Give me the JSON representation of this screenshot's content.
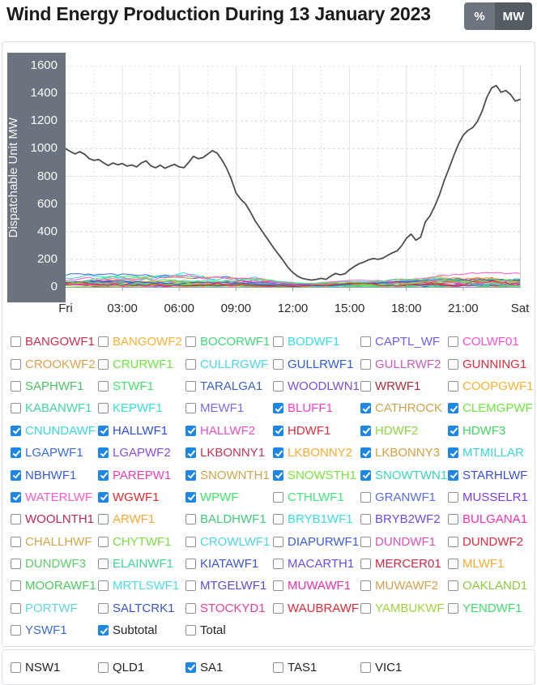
{
  "title": "Wind Energy Production During 13 January 2023",
  "toolbar": {
    "percent_label": "%",
    "mw_label": "MW",
    "active": "MW",
    "percent_bg": "#6c757d",
    "mw_bg": "#545b62"
  },
  "chart_data": {
    "type": "line",
    "title": "Wind Energy Production During 13 January 2023",
    "ylabel": "Dispatchable Unit MW",
    "ylim": [
      0,
      1600
    ],
    "ytick_interval": 200,
    "grid": true,
    "legend_position": "none",
    "axis_strip_color": "#6b747e",
    "xticks": [
      {
        "label": "Fri",
        "hour": 0
      },
      {
        "label": "03:00",
        "hour": 3
      },
      {
        "label": "06:00",
        "hour": 6
      },
      {
        "label": "09:00",
        "hour": 9
      },
      {
        "label": "12:00",
        "hour": 12
      },
      {
        "label": "15:00",
        "hour": 15
      },
      {
        "label": "18:00",
        "hour": 18
      },
      {
        "label": "21:00",
        "hour": 21
      },
      {
        "label": "Sat",
        "hour": 24
      }
    ],
    "series": [
      {
        "name": "Subtotal",
        "color": "#4d4d4d",
        "points": [
          [
            0,
            1000
          ],
          [
            0.25,
            980
          ],
          [
            0.5,
            962
          ],
          [
            0.75,
            978
          ],
          [
            1,
            960
          ],
          [
            1.25,
            928
          ],
          [
            1.5,
            915
          ],
          [
            1.75,
            922
          ],
          [
            2,
            898
          ],
          [
            2.25,
            878
          ],
          [
            2.5,
            896
          ],
          [
            2.75,
            884
          ],
          [
            3,
            892
          ],
          [
            3.25,
            874
          ],
          [
            3.5,
            882
          ],
          [
            3.75,
            868
          ],
          [
            4,
            896
          ],
          [
            4.25,
            912
          ],
          [
            4.5,
            876
          ],
          [
            4.75,
            862
          ],
          [
            5,
            880
          ],
          [
            5.25,
            858
          ],
          [
            5.5,
            874
          ],
          [
            5.75,
            886
          ],
          [
            6,
            868
          ],
          [
            6.25,
            862
          ],
          [
            6.5,
            900
          ],
          [
            6.75,
            945
          ],
          [
            7,
            928
          ],
          [
            7.25,
            935
          ],
          [
            7.5,
            960
          ],
          [
            7.75,
            985
          ],
          [
            8,
            968
          ],
          [
            8.25,
            920
          ],
          [
            8.5,
            860
          ],
          [
            8.75,
            780
          ],
          [
            9,
            680
          ],
          [
            9.25,
            635
          ],
          [
            9.5,
            600
          ],
          [
            9.75,
            545
          ],
          [
            10,
            480
          ],
          [
            10.25,
            430
          ],
          [
            10.5,
            380
          ],
          [
            10.75,
            330
          ],
          [
            11,
            280
          ],
          [
            11.25,
            235
          ],
          [
            11.5,
            190
          ],
          [
            11.75,
            140
          ],
          [
            12,
            105
          ],
          [
            12.25,
            78
          ],
          [
            12.5,
            62
          ],
          [
            12.75,
            55
          ],
          [
            13,
            50
          ],
          [
            13.25,
            55
          ],
          [
            13.5,
            62
          ],
          [
            13.75,
            55
          ],
          [
            14,
            78
          ],
          [
            14.25,
            98
          ],
          [
            14.5,
            88
          ],
          [
            14.75,
            95
          ],
          [
            15,
            125
          ],
          [
            15.25,
            148
          ],
          [
            15.5,
            168
          ],
          [
            15.75,
            180
          ],
          [
            16,
            196
          ],
          [
            16.25,
            206
          ],
          [
            16.5,
            200
          ],
          [
            16.75,
            208
          ],
          [
            17,
            228
          ],
          [
            17.25,
            246
          ],
          [
            17.5,
            260
          ],
          [
            17.75,
            298
          ],
          [
            18,
            352
          ],
          [
            18.25,
            382
          ],
          [
            18.5,
            338
          ],
          [
            18.75,
            360
          ],
          [
            19,
            470
          ],
          [
            19.25,
            515
          ],
          [
            19.5,
            585
          ],
          [
            19.75,
            668
          ],
          [
            20,
            770
          ],
          [
            20.25,
            856
          ],
          [
            20.5,
            948
          ],
          [
            20.75,
            1032
          ],
          [
            21,
            1098
          ],
          [
            21.25,
            1132
          ],
          [
            21.5,
            1152
          ],
          [
            21.75,
            1196
          ],
          [
            22,
            1272
          ],
          [
            22.25,
            1372
          ],
          [
            22.5,
            1438
          ],
          [
            22.75,
            1456
          ],
          [
            23,
            1408
          ],
          [
            23.25,
            1420
          ],
          [
            23.5,
            1392
          ],
          [
            23.75,
            1344
          ],
          [
            24,
            1356
          ]
        ]
      }
    ],
    "minor_band_max_by_hour": {
      "hours": [
        0,
        2,
        4,
        6,
        8,
        9,
        10,
        11,
        12,
        13,
        14,
        15,
        16,
        17,
        18,
        19,
        20,
        21,
        22,
        23,
        24
      ],
      "max": [
        100,
        98,
        102,
        108,
        100,
        95,
        85,
        60,
        38,
        32,
        42,
        55,
        60,
        68,
        80,
        95,
        110,
        118,
        122,
        120,
        118
      ]
    }
  },
  "units": [
    {
      "label": "BANGOWF1",
      "color": "#cf2e4e",
      "checked": false
    },
    {
      "label": "BANGOWF2",
      "color": "#ffb02e",
      "checked": false
    },
    {
      "label": "BOCORWF1",
      "color": "#3edc78",
      "checked": false
    },
    {
      "label": "BODWF1",
      "color": "#35e0e8",
      "checked": false
    },
    {
      "label": "CAPTL_WF",
      "color": "#6a5cff",
      "checked": false
    },
    {
      "label": "COLWF01",
      "color": "#ff4dd2",
      "checked": false
    },
    {
      "label": "CROOKWF2",
      "color": "#e0a04a",
      "checked": false
    },
    {
      "label": "CRURWF1",
      "color": "#6ee83c",
      "checked": false
    },
    {
      "label": "CULLRGWF",
      "color": "#4ad8e8",
      "checked": false
    },
    {
      "label": "GULLRWF1",
      "color": "#2d5be0",
      "checked": false
    },
    {
      "label": "GULLRWF2",
      "color": "#cc5bbf",
      "checked": false
    },
    {
      "label": "GUNNING1",
      "color": "#e8283c",
      "checked": false
    },
    {
      "label": "SAPHWF1",
      "color": "#4cc45e",
      "checked": false
    },
    {
      "label": "STWF1",
      "color": "#3ee86a",
      "checked": false
    },
    {
      "label": "TARALGA1",
      "color": "#3a62c8",
      "checked": false
    },
    {
      "label": "WOODLWN1",
      "color": "#7a4de8",
      "checked": false
    },
    {
      "label": "WRWF1",
      "color": "#b2293a",
      "checked": false
    },
    {
      "label": "COOPGWF1",
      "color": "#ffb02e",
      "checked": false
    },
    {
      "label": "KABANWF1",
      "color": "#3ed8a0",
      "checked": false
    },
    {
      "label": "KEPWF1",
      "color": "#35e0d8",
      "checked": false
    },
    {
      "label": "MEWF1",
      "color": "#7b6cf0",
      "checked": false
    },
    {
      "label": "BLUFF1",
      "color": "#ff3dc8",
      "checked": true
    },
    {
      "label": "CATHROCK",
      "color": "#cfa54a",
      "checked": true
    },
    {
      "label": "CLEMGPWF",
      "color": "#6ee83c",
      "checked": true
    },
    {
      "label": "CNUNDAWF",
      "color": "#35d8e0",
      "checked": true
    },
    {
      "label": "HALLWF1",
      "color": "#2d4be0",
      "checked": true
    },
    {
      "label": "HALLWF2",
      "color": "#f04dc8",
      "checked": true
    },
    {
      "label": "HDWF1",
      "color": "#e8283c",
      "checked": true
    },
    {
      "label": "HDWF2",
      "color": "#8ad83c",
      "checked": true
    },
    {
      "label": "HDWF3",
      "color": "#3ed85e",
      "checked": true
    },
    {
      "label": "LGAPWF1",
      "color": "#3a6ae8",
      "checked": true
    },
    {
      "label": "LGAPWF2",
      "color": "#8a4de8",
      "checked": true
    },
    {
      "label": "LKBONNY1",
      "color": "#cc3355",
      "checked": true
    },
    {
      "label": "LKBONNY2",
      "color": "#ffaa2e",
      "checked": true
    },
    {
      "label": "LKBONNY3",
      "color": "#d8a03a",
      "checked": true
    },
    {
      "label": "MTMILLAR",
      "color": "#3ad8d8",
      "checked": true
    },
    {
      "label": "NBHWF1",
      "color": "#3a5ae8",
      "checked": true
    },
    {
      "label": "PAREPW1",
      "color": "#f03dba",
      "checked": true
    },
    {
      "label": "SNOWNTH1",
      "color": "#cfa54a",
      "checked": true
    },
    {
      "label": "SNOWSTH1",
      "color": "#7ae83c",
      "checked": true
    },
    {
      "label": "SNOWTWN1",
      "color": "#3ad8b8",
      "checked": true
    },
    {
      "label": "STARHLWF",
      "color": "#3a4fe0",
      "checked": true
    },
    {
      "label": "WATERLWF",
      "color": "#ff5ac8",
      "checked": true
    },
    {
      "label": "WGWF1",
      "color": "#e82830",
      "checked": true
    },
    {
      "label": "WPWF",
      "color": "#3ee86a",
      "checked": true
    },
    {
      "label": "CTHLWF1",
      "color": "#3ee87a",
      "checked": false
    },
    {
      "label": "GRANWF1",
      "color": "#5a6ce8",
      "checked": false
    },
    {
      "label": "MUSSELR1",
      "color": "#7a3de8",
      "checked": false
    },
    {
      "label": "WOOLNTH1",
      "color": "#c22950",
      "checked": false
    },
    {
      "label": "ARWF1",
      "color": "#ffaa2e",
      "checked": false
    },
    {
      "label": "BALDHWF1",
      "color": "#3ecc7a",
      "checked": false
    },
    {
      "label": "BRYB1WF1",
      "color": "#35e0e8",
      "checked": false
    },
    {
      "label": "BRYB2WF2",
      "color": "#6a4de8",
      "checked": false
    },
    {
      "label": "BULGANA1",
      "color": "#ff2db8",
      "checked": false
    },
    {
      "label": "CHALLHWF",
      "color": "#d8a54a",
      "checked": false
    },
    {
      "label": "CHYTWF1",
      "color": "#7ae03c",
      "checked": false
    },
    {
      "label": "CROWLWF1",
      "color": "#4ad8e8",
      "checked": false
    },
    {
      "label": "DIAPURWF1",
      "color": "#3a5ae8",
      "checked": false
    },
    {
      "label": "DUNDWF1",
      "color": "#e04dc0",
      "checked": false
    },
    {
      "label": "DUNDWF2",
      "color": "#e8283c",
      "checked": false
    },
    {
      "label": "DUNDWF3",
      "color": "#5ecc6a",
      "checked": false
    },
    {
      "label": "ELAINWF1",
      "color": "#3ad890",
      "checked": false
    },
    {
      "label": "KIATAWF1",
      "color": "#3a55d8",
      "checked": false
    },
    {
      "label": "MACARTH1",
      "color": "#6a4df0",
      "checked": false
    },
    {
      "label": "MERCER01",
      "color": "#cc2944",
      "checked": false
    },
    {
      "label": "MLWF1",
      "color": "#ffaa2e",
      "checked": false
    },
    {
      "label": "MOORAWF1",
      "color": "#4acc5e",
      "checked": false
    },
    {
      "label": "MRTLSWF1",
      "color": "#4ae0e8",
      "checked": false
    },
    {
      "label": "MTGELWF1",
      "color": "#5a4de0",
      "checked": false
    },
    {
      "label": "MUWAWF1",
      "color": "#f02dae",
      "checked": false
    },
    {
      "label": "MUWAWF2",
      "color": "#d8a04a",
      "checked": false
    },
    {
      "label": "OAKLAND1",
      "color": "#8ccc3c",
      "checked": false
    },
    {
      "label": "PORTWF",
      "color": "#5ad8e0",
      "checked": false
    },
    {
      "label": "SALTCRK1",
      "color": "#3a55cc",
      "checked": false
    },
    {
      "label": "STOCKYD1",
      "color": "#f03da0",
      "checked": false
    },
    {
      "label": "WAUBRAWF",
      "color": "#e82838",
      "checked": false
    },
    {
      "label": "YAMBUKWF",
      "color": "#a0d83c",
      "checked": false
    },
    {
      "label": "YENDWF1",
      "color": "#3ee06a",
      "checked": false
    },
    {
      "label": "YSWF1",
      "color": "#3a6ad8",
      "checked": false
    }
  ],
  "aggregates": [
    {
      "label": "Subtotal",
      "color": "#212529",
      "checked": true
    },
    {
      "label": "Total",
      "color": "#212529",
      "checked": false
    }
  ],
  "regions": [
    {
      "label": "NSW1",
      "checked": false
    },
    {
      "label": "QLD1",
      "checked": false
    },
    {
      "label": "SA1",
      "checked": true
    },
    {
      "label": "TAS1",
      "checked": false
    },
    {
      "label": "VIC1",
      "checked": false
    }
  ]
}
